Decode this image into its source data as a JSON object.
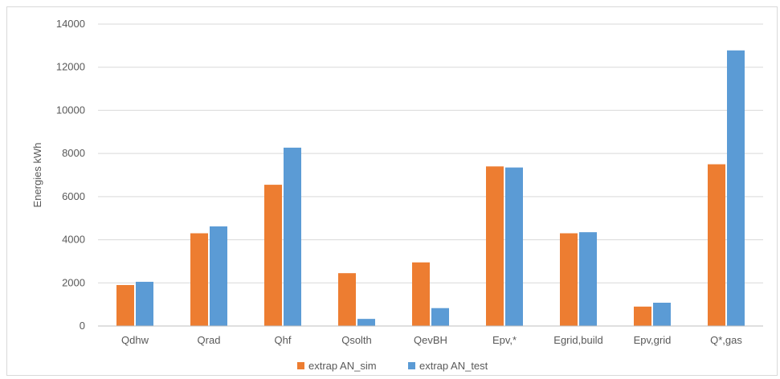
{
  "chart_data": {
    "type": "bar",
    "title": "",
    "xlabel": "",
    "ylabel": "Energies kWh",
    "ylim": [
      0,
      14000
    ],
    "yticks": [
      0,
      2000,
      4000,
      6000,
      8000,
      10000,
      12000,
      14000
    ],
    "grid": true,
    "legend_position": "bottom",
    "categories": [
      "Qdhw",
      "Qrad",
      "Qhf",
      "Qsolth",
      "QevBH",
      "Epv,*",
      "Egrid,build",
      "Epv,grid",
      "Q*,gas"
    ],
    "series": [
      {
        "name": "extrap AN_sim",
        "color": "#ED7D31",
        "values": [
          1900,
          4300,
          6550,
          2450,
          2950,
          7400,
          4300,
          900,
          7500
        ]
      },
      {
        "name": "extrap AN_test",
        "color": "#5B9BD5",
        "values": [
          2050,
          4620,
          8270,
          330,
          830,
          7350,
          4350,
          1080,
          12780
        ]
      }
    ]
  }
}
